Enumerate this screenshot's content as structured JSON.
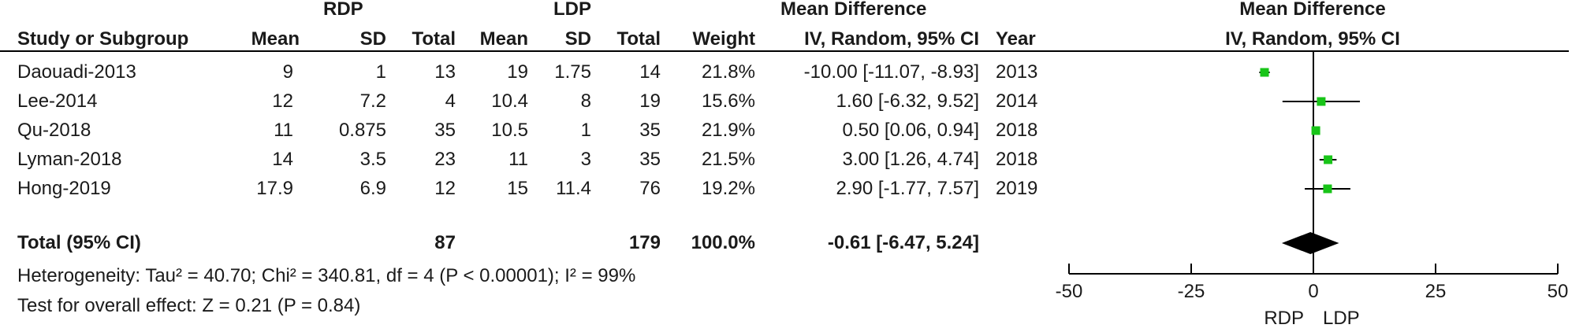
{
  "header": {
    "group1": "RDP",
    "group2": "LDP",
    "md_title": "Mean Difference",
    "plot_title": "Mean Difference",
    "plot_subtitle": "IV, Random, 95% CI",
    "cols": {
      "study": "Study or Subgroup",
      "mean1": "Mean",
      "sd1": "SD",
      "total1": "Total",
      "mean2": "Mean",
      "sd2": "SD",
      "total2": "Total",
      "weight": "Weight",
      "md": "IV, Random, 95% CI",
      "year": "Year"
    }
  },
  "studies": [
    {
      "name": "Daouadi-2013",
      "mean1": "9",
      "sd1": "1",
      "total1": "13",
      "mean2": "19",
      "sd2": "1.75",
      "total2": "14",
      "weight": "21.8%",
      "md": "-10.00 [-11.07, -8.93]",
      "year": "2013"
    },
    {
      "name": "Lee-2014",
      "mean1": "12",
      "sd1": "7.2",
      "total1": "4",
      "mean2": "10.4",
      "sd2": "8",
      "total2": "19",
      "weight": "15.6%",
      "md": "1.60 [-6.32, 9.52]",
      "year": "2014"
    },
    {
      "name": "Qu-2018",
      "mean1": "11",
      "sd1": "0.875",
      "total1": "35",
      "mean2": "10.5",
      "sd2": "1",
      "total2": "35",
      "weight": "21.9%",
      "md": "0.50 [0.06, 0.94]",
      "year": "2018"
    },
    {
      "name": "Lyman-2018",
      "mean1": "14",
      "sd1": "3.5",
      "total1": "23",
      "mean2": "11",
      "sd2": "3",
      "total2": "35",
      "weight": "21.5%",
      "md": "3.00 [1.26, 4.74]",
      "year": "2018"
    },
    {
      "name": "Hong-2019",
      "mean1": "17.9",
      "sd1": "6.9",
      "total1": "12",
      "mean2": "15",
      "sd2": "11.4",
      "total2": "76",
      "weight": "19.2%",
      "md": "2.90 [-1.77, 7.57]",
      "year": "2019"
    }
  ],
  "total": {
    "label": "Total (95% CI)",
    "total1": "87",
    "total2": "179",
    "weight": "100.0%",
    "md": "-0.61 [-6.47, 5.24]"
  },
  "heterogeneity": "Heterogeneity: Tau² = 40.70; Chi² = 340.81, df = 4 (P < 0.00001); I² = 99%",
  "overall_effect": "Test for overall effect: Z = 0.21 (P = 0.84)",
  "axis": {
    "favours_left": "RDP",
    "favours_right": "LDP"
  },
  "colors": {
    "marker": "#18c418",
    "diamond": "#000000",
    "line": "#000000"
  },
  "chart_data": {
    "type": "scatter",
    "subtype": "forest_plot",
    "xlim": [
      -50,
      50
    ],
    "ticks": [
      -50,
      -25,
      0,
      25,
      50
    ],
    "tick_labels": [
      "-50",
      "-25",
      "0",
      "25",
      "50"
    ],
    "reference_line": 0,
    "studies": [
      {
        "label": "Daouadi-2013",
        "estimate": -10.0,
        "lower": -11.07,
        "upper": -8.93,
        "weight": 21.8
      },
      {
        "label": "Lee-2014",
        "estimate": 1.6,
        "lower": -6.32,
        "upper": 9.52,
        "weight": 15.6
      },
      {
        "label": "Qu-2018",
        "estimate": 0.5,
        "lower": 0.06,
        "upper": 0.94,
        "weight": 21.9
      },
      {
        "label": "Lyman-2018",
        "estimate": 3.0,
        "lower": 1.26,
        "upper": 4.74,
        "weight": 21.5
      },
      {
        "label": "Hong-2019",
        "estimate": 2.9,
        "lower": -1.77,
        "upper": 7.57,
        "weight": 19.2
      }
    ],
    "pooled": {
      "estimate": -0.61,
      "lower": -6.47,
      "upper": 5.24
    }
  }
}
